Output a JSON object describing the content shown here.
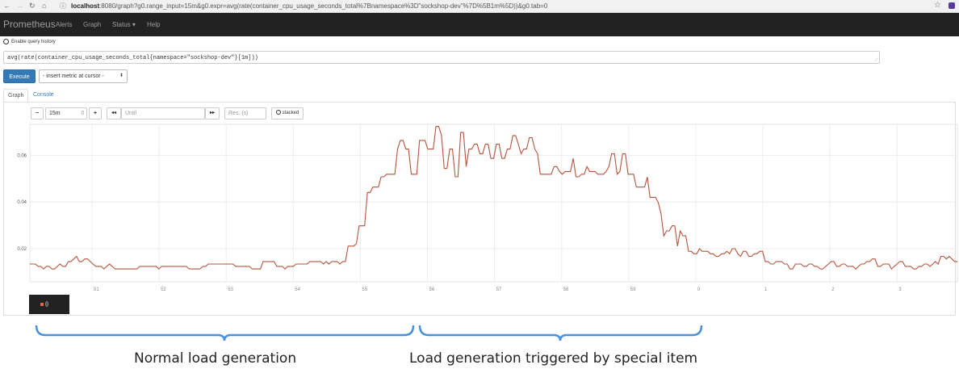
{
  "browser": {
    "back_icon": "back-arrow-icon",
    "forward_icon": "forward-arrow-icon",
    "reload_icon": "reload-icon",
    "home_icon": "home-icon",
    "url_host": "localhost",
    "url_rest": ":8080/graph?g0.range_input=15m&g0.expr=avg(rate(container_cpu_usage_seconds_total%7Bnamespace%3D\"sockshop-dev\"%7D%5B1m%5D))&g0.tab=0"
  },
  "navbar": {
    "brand": "Prometheus",
    "items": [
      "Alerts",
      "Graph",
      "Status ▾",
      "Help"
    ]
  },
  "history": {
    "label": "Enable query history"
  },
  "query": {
    "expression": "avg(rate(container_cpu_usage_seconds_total{namespace=\"sockshop-dev\"}[1m]))",
    "execute_label": "Execute",
    "metric_select": "- insert metric at cursor -"
  },
  "tabs": [
    "Graph",
    "Console"
  ],
  "controls": {
    "minus": "−",
    "range": "15m",
    "plus": "+",
    "back": "◂◂",
    "until_placeholder": "Until",
    "forward": "▸▸",
    "res_placeholder": "Res. (s)",
    "stacked": "stacked"
  },
  "legend": {
    "label": "{}",
    "color": "#e0674a"
  },
  "annotations": {
    "left": "Normal load generation",
    "right": "Load generation triggered by special item",
    "brace_color": "#4a90d9"
  },
  "chart_data": {
    "type": "line",
    "series_color": "#b5533c",
    "y_ticks": [
      "0.02",
      "0.04",
      "0.06"
    ],
    "y_tick_values": [
      0.02,
      0.04,
      0.06
    ],
    "ylim": [
      0.0058,
      0.0733
    ],
    "x_ticks": [
      "51",
      "52",
      "53",
      "54",
      "55",
      "56",
      "57",
      "58",
      "59",
      "0",
      "1",
      "2",
      "3"
    ],
    "values": [
      0.0134,
      0.0134,
      0.0134,
      0.0124,
      0.0124,
      0.0113,
      0.0124,
      0.0124,
      0.0113,
      0.0113,
      0.0124,
      0.0134,
      0.0124,
      0.0124,
      0.0145,
      0.0145,
      0.0156,
      0.0167,
      0.0145,
      0.0145,
      0.0156,
      0.0156,
      0.0145,
      0.0134,
      0.0124,
      0.0124,
      0.0124,
      0.0113,
      0.0124,
      0.0134,
      0.0124,
      0.0113,
      0.0113,
      0.0113,
      0.0113,
      0.0113,
      0.0113,
      0.0113,
      0.0113,
      0.0113,
      0.0124,
      0.0124,
      0.0124,
      0.0124,
      0.0124,
      0.0124,
      0.0124,
      0.0113,
      0.0124,
      0.0124,
      0.0124,
      0.0124,
      0.0124,
      0.0124,
      0.0124,
      0.0124,
      0.0124,
      0.0124,
      0.0113,
      0.0113,
      0.0113,
      0.0113,
      0.0113,
      0.0124,
      0.0124,
      0.0134,
      0.0134,
      0.0134,
      0.0134,
      0.0134,
      0.0134,
      0.0134,
      0.0134,
      0.0134,
      0.0134,
      0.0124,
      0.0124,
      0.0124,
      0.0124,
      0.0124,
      0.0124,
      0.0113,
      0.0113,
      0.0113,
      0.0113,
      0.0145,
      0.0145,
      0.0145,
      0.0145,
      0.0145,
      0.0124,
      0.0124,
      0.0124,
      0.0113,
      0.0124,
      0.0124,
      0.0124,
      0.0134,
      0.0134,
      0.0134,
      0.0134,
      0.0134,
      0.0145,
      0.0145,
      0.0145,
      0.0145,
      0.0145,
      0.0134,
      0.0145,
      0.0134,
      0.0145,
      0.0145,
      0.0145,
      0.0134,
      0.0145,
      0.0145,
      0.0211,
      0.0211,
      0.0211,
      0.0221,
      0.0298,
      0.0298,
      0.0298,
      0.0441,
      0.0441,
      0.0464,
      0.0464,
      0.0464,
      0.0508,
      0.0508,
      0.0519,
      0.0519,
      0.0519,
      0.0519,
      0.0627,
      0.0664,
      0.0664,
      0.0627,
      0.0627,
      0.0519,
      0.0519,
      0.0519,
      0.0664,
      0.0664,
      0.0664,
      0.0627,
      0.0627,
      0.0627,
      0.0724,
      0.0724,
      0.0685,
      0.0544,
      0.0544,
      0.0627,
      0.0627,
      0.0508,
      0.0508,
      0.0698,
      0.0698,
      0.0552,
      0.0627,
      0.0627,
      0.0648,
      0.0648,
      0.0607,
      0.0607,
      0.0648,
      0.0648,
      0.0587,
      0.0587,
      0.0648,
      0.0648,
      0.0587,
      0.0587,
      0.0627,
      0.0627,
      0.0685,
      0.0685,
      0.0648,
      0.0607,
      0.0627,
      0.0627,
      0.0676,
      0.0676,
      0.0627,
      0.0607,
      0.0519,
      0.0519,
      0.0519,
      0.0519,
      0.0519,
      0.0552,
      0.0552,
      0.0531,
      0.0519,
      0.0531,
      0.0531,
      0.0531,
      0.0587,
      0.0508,
      0.0508,
      0.0519,
      0.0519,
      0.0552,
      0.0531,
      0.0531,
      0.0531,
      0.0519,
      0.0519,
      0.0519,
      0.0531,
      0.0552,
      0.0607,
      0.0607,
      0.0519,
      0.0531,
      0.0607,
      0.0607,
      0.0519,
      0.0519,
      0.0519,
      0.0464,
      0.0464,
      0.0464,
      0.0464,
      0.0507,
      0.042,
      0.042,
      0.042,
      0.0397,
      0.0349,
      0.0255,
      0.0276,
      0.0276,
      0.0298,
      0.0298,
      0.0211,
      0.0276,
      0.0255,
      0.0255,
      0.0189,
      0.0189,
      0.0178,
      0.0178,
      0.02,
      0.0189,
      0.0189,
      0.0189,
      0.0178,
      0.0178,
      0.0167,
      0.0167,
      0.0178,
      0.0178,
      0.0189,
      0.0178,
      0.02,
      0.02,
      0.0178,
      0.0167,
      0.0189,
      0.0189,
      0.0167,
      0.0167,
      0.0178,
      0.0178,
      0.0189,
      0.0189,
      0.0145,
      0.0145,
      0.0134,
      0.0134,
      0.0145,
      0.0145,
      0.0145,
      0.0134,
      0.0134,
      0.0113,
      0.0113,
      0.0134,
      0.0134,
      0.0134,
      0.0124,
      0.0124,
      0.0134,
      0.0134,
      0.0124,
      0.0124,
      0.0113,
      0.0113,
      0.0124,
      0.0134,
      0.0145,
      0.0145,
      0.0124,
      0.0124,
      0.0134,
      0.0134,
      0.0124,
      0.0124,
      0.0124,
      0.0113,
      0.0124,
      0.0134,
      0.0134,
      0.0145,
      0.0145,
      0.0156,
      0.0156,
      0.0124,
      0.0124,
      0.0134,
      0.0134,
      0.0134,
      0.0113,
      0.0124,
      0.0134,
      0.0145,
      0.0145,
      0.0124,
      0.0124,
      0.0124,
      0.0113,
      0.0113,
      0.0124,
      0.0124,
      0.0134,
      0.0134,
      0.0124,
      0.0134,
      0.0145,
      0.0134,
      0.0167,
      0.0167,
      0.0156,
      0.0167,
      0.0156,
      0.0145,
      0.0145
    ]
  }
}
